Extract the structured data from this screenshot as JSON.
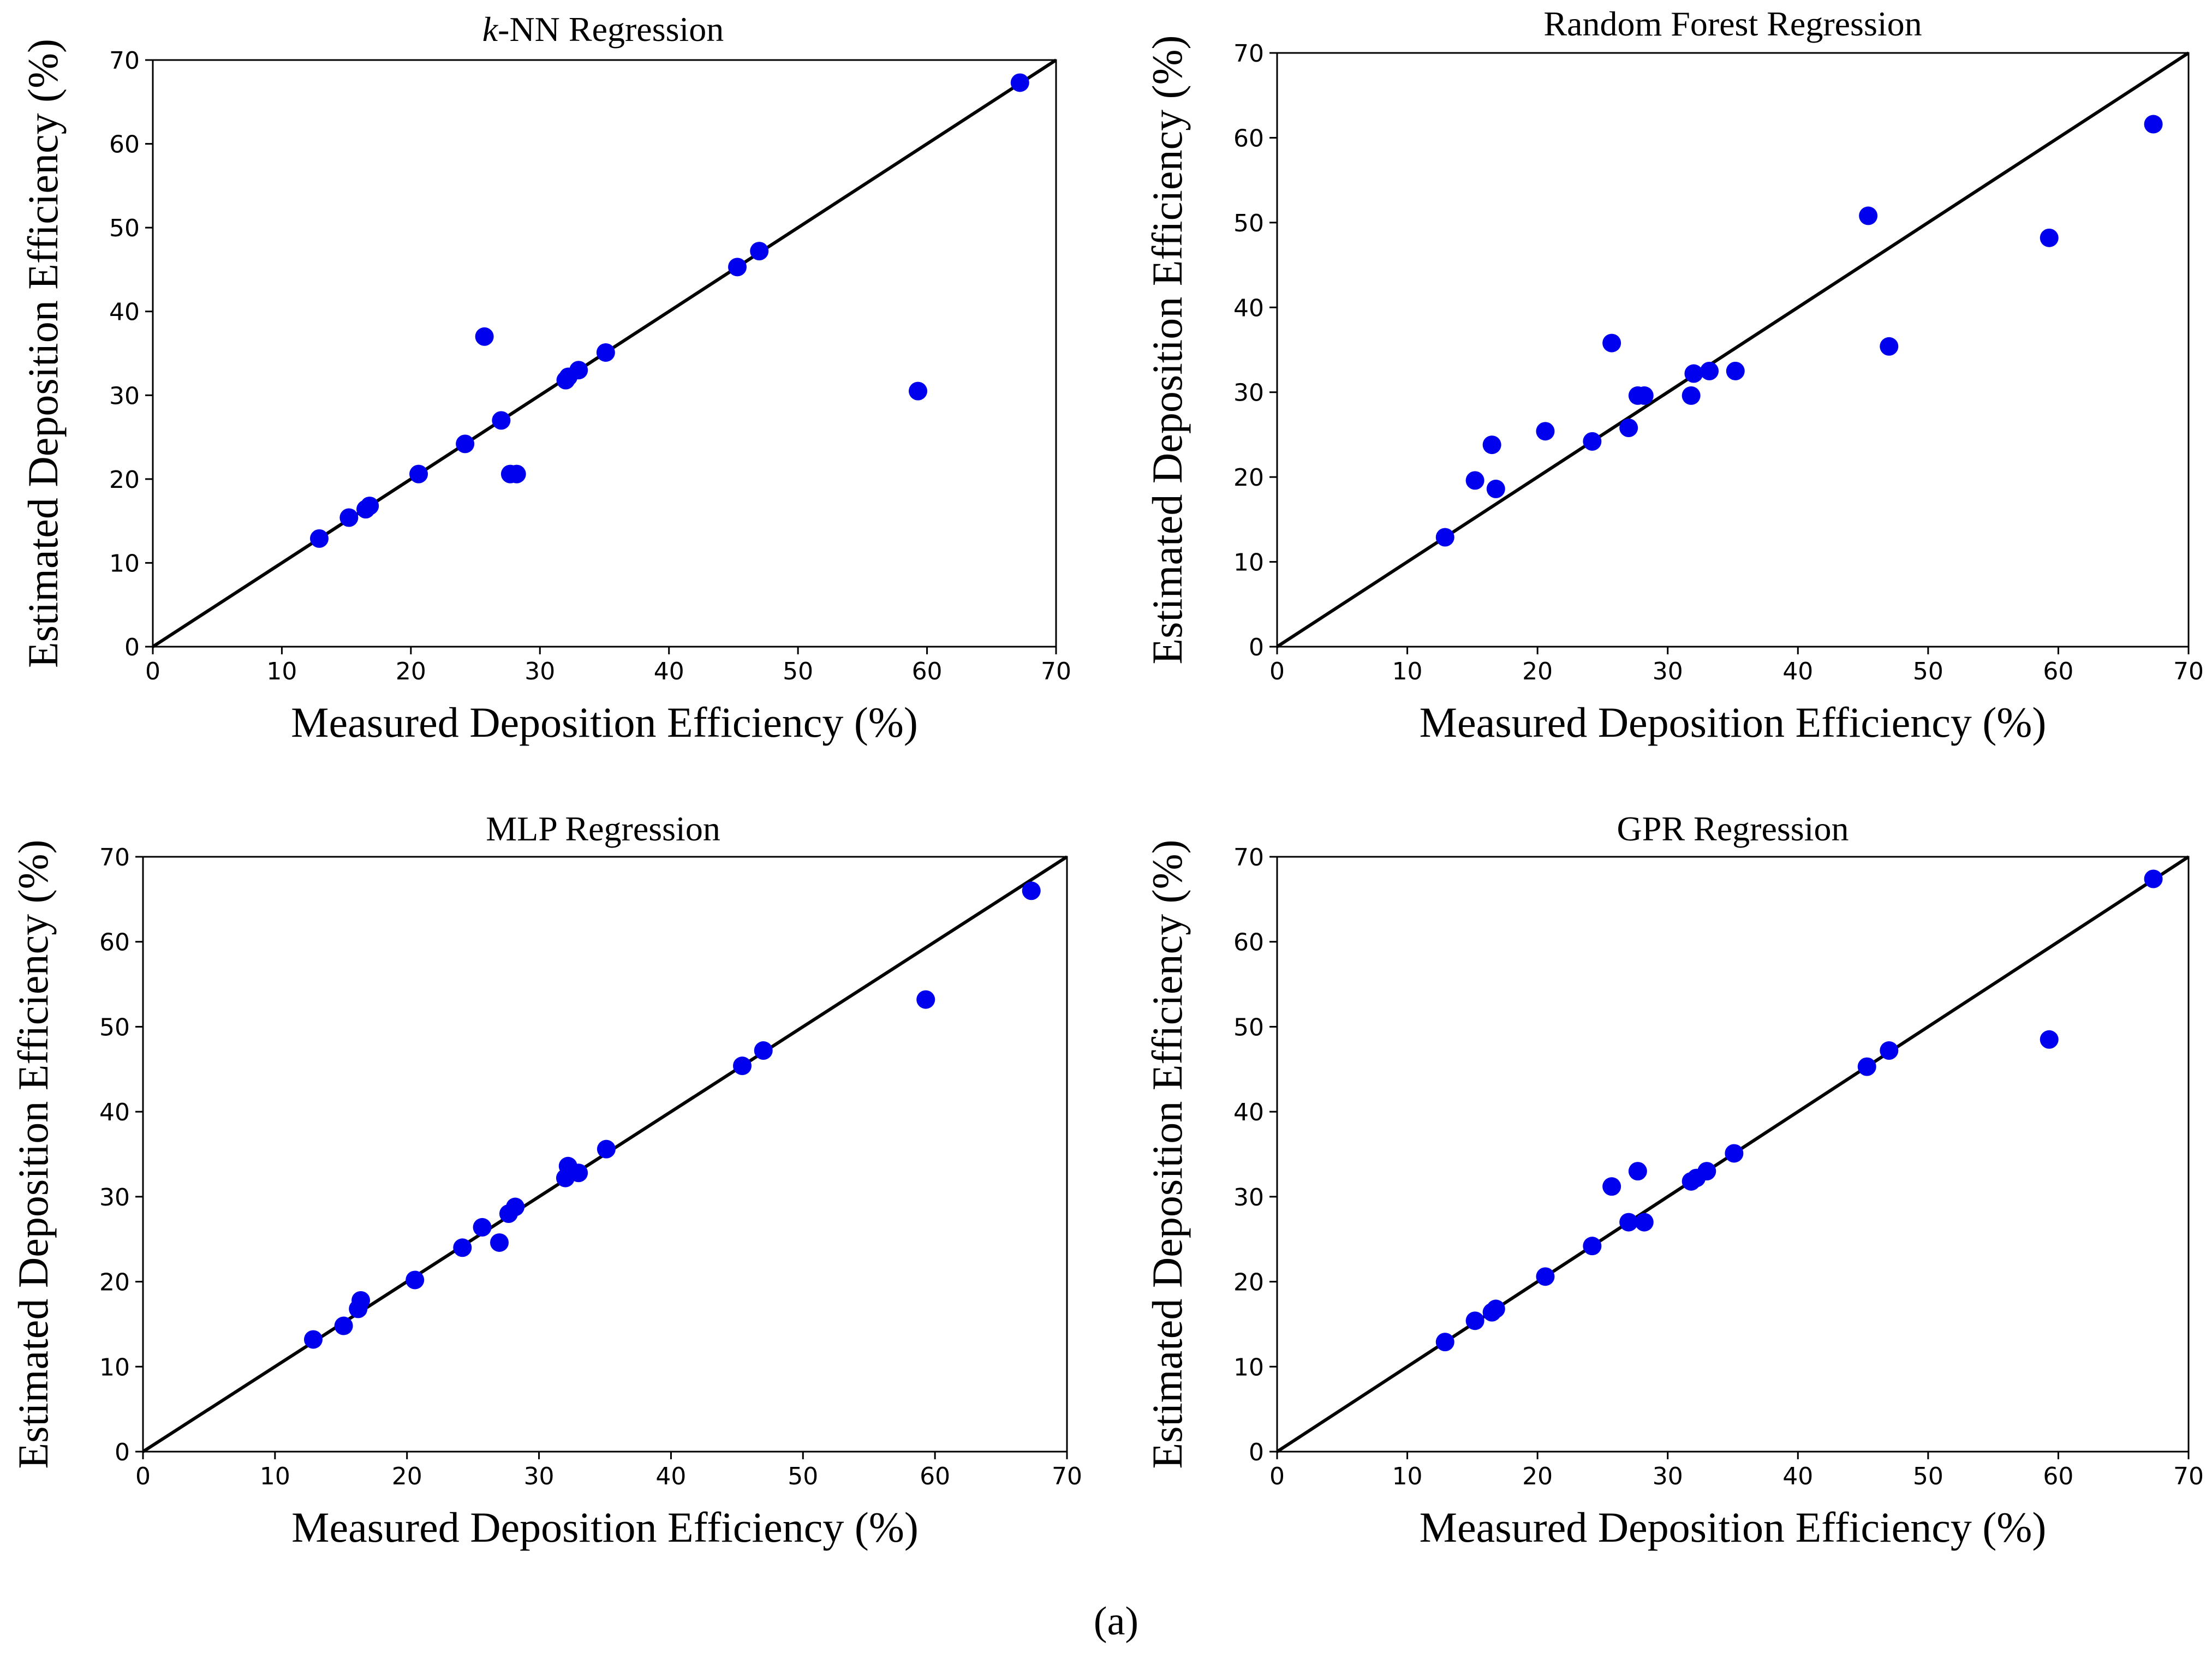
{
  "caption": "(a)",
  "colors": {
    "points": "#0000ee",
    "line": "#000000",
    "axes": "#000000"
  },
  "chart_data": [
    {
      "type": "scatter",
      "title_italic": "k",
      "title": "-NN Regression",
      "xlabel": "Measured Deposition Efficiency (%)",
      "ylabel": "Estimated Deposition Efficiency (%)",
      "xlim": [
        0,
        70
      ],
      "ylim": [
        0,
        70
      ],
      "xticks": [
        "0",
        "10",
        "20",
        "30",
        "40",
        "50",
        "60",
        "70"
      ],
      "yticks": [
        "0",
        "10",
        "20",
        "30",
        "40",
        "50",
        "60",
        "70"
      ],
      "reference_line": "y = x",
      "x": [
        12.9,
        15.2,
        16.5,
        16.8,
        20.6,
        24.2,
        25.7,
        27.0,
        27.7,
        28.2,
        32.0,
        32.2,
        33.0,
        35.1,
        45.3,
        47.0,
        59.3,
        67.2
      ],
      "y": [
        12.9,
        15.4,
        16.4,
        16.8,
        20.6,
        24.2,
        37.0,
        27.0,
        20.6,
        20.6,
        31.8,
        32.2,
        33.0,
        35.1,
        45.3,
        47.2,
        30.5,
        67.3
      ]
    },
    {
      "type": "scatter",
      "title": "Random Forest Regression",
      "xlabel": "Measured Deposition Efficiency (%)",
      "ylabel": "Estimated Deposition Efficiency (%)",
      "xlim": [
        0,
        70
      ],
      "ylim": [
        0,
        70
      ],
      "xticks": [
        "0",
        "10",
        "20",
        "30",
        "40",
        "50",
        "60",
        "70"
      ],
      "yticks": [
        "0",
        "10",
        "20",
        "30",
        "40",
        "50",
        "60",
        "70"
      ],
      "reference_line": "y = x",
      "x": [
        12.9,
        15.2,
        16.5,
        16.8,
        20.6,
        24.2,
        25.7,
        27.0,
        27.7,
        28.2,
        31.8,
        32.0,
        33.2,
        35.2,
        45.4,
        47.0,
        59.3,
        67.3
      ],
      "y": [
        12.9,
        19.6,
        23.8,
        18.6,
        25.4,
        24.2,
        35.8,
        25.8,
        29.6,
        29.6,
        29.6,
        32.2,
        32.5,
        32.5,
        50.8,
        35.4,
        48.2,
        61.6
      ]
    },
    {
      "type": "scatter",
      "title": "MLP Regression",
      "xlabel": "Measured Deposition Efficiency (%)",
      "ylabel": "Estimated Deposition Efficiency (%)",
      "xlim": [
        0,
        70
      ],
      "ylim": [
        0,
        70
      ],
      "xticks": [
        "0",
        "10",
        "20",
        "30",
        "40",
        "50",
        "60",
        "70"
      ],
      "yticks": [
        "0",
        "10",
        "20",
        "30",
        "40",
        "50",
        "60",
        "70"
      ],
      "reference_line": "y = x",
      "x": [
        12.9,
        15.2,
        16.3,
        16.5,
        20.6,
        24.2,
        25.7,
        27.0,
        27.7,
        28.2,
        32.0,
        32.2,
        33.0,
        35.1,
        45.4,
        47.0,
        59.3,
        67.3
      ],
      "y": [
        13.2,
        14.8,
        16.8,
        17.8,
        20.2,
        24.0,
        26.4,
        24.6,
        28.0,
        28.8,
        32.2,
        33.6,
        32.8,
        35.6,
        45.4,
        47.2,
        53.2,
        66.0
      ]
    },
    {
      "type": "scatter",
      "title": "GPR Regression",
      "xlabel": "Measured Deposition Efficiency (%)",
      "ylabel": "Estimated Deposition Efficiency (%)",
      "xlim": [
        0,
        70
      ],
      "ylim": [
        0,
        70
      ],
      "xticks": [
        "0",
        "10",
        "20",
        "30",
        "40",
        "50",
        "60",
        "70"
      ],
      "yticks": [
        "0",
        "10",
        "20",
        "30",
        "40",
        "50",
        "60",
        "70"
      ],
      "reference_line": "y = x",
      "x": [
        12.9,
        15.2,
        16.5,
        16.8,
        20.6,
        24.2,
        25.7,
        27.0,
        27.7,
        28.2,
        31.8,
        32.2,
        33.0,
        35.1,
        45.3,
        47.0,
        59.3,
        67.3
      ],
      "y": [
        12.9,
        15.4,
        16.4,
        16.8,
        20.6,
        24.2,
        31.2,
        27.0,
        33.0,
        27.0,
        31.8,
        32.2,
        33.0,
        35.1,
        45.3,
        47.2,
        48.5,
        67.4
      ]
    }
  ]
}
